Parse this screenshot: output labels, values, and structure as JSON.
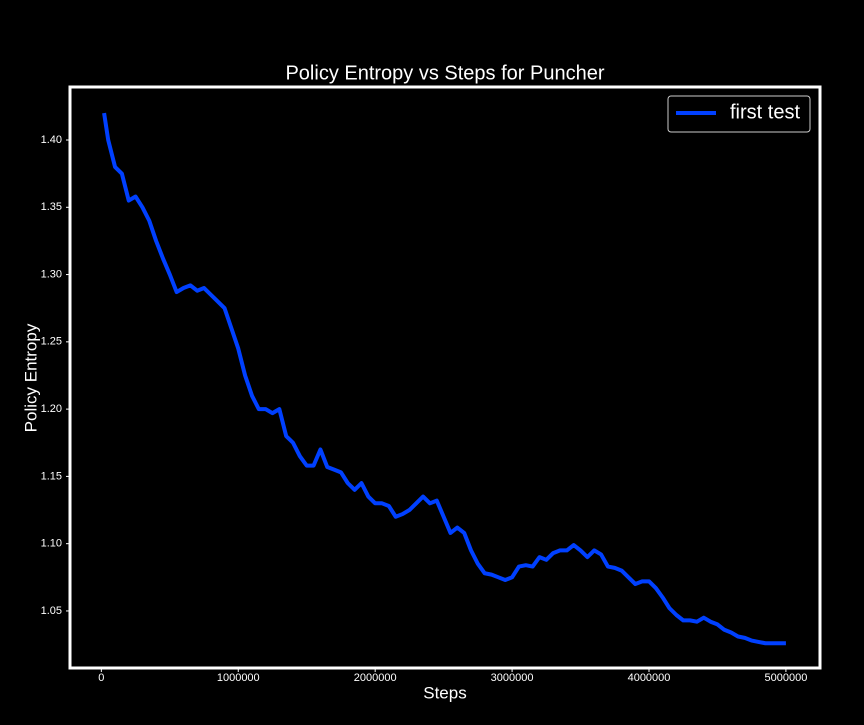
{
  "chart_data": {
    "type": "line",
    "title": "Policy Entropy vs Steps for Puncher",
    "x_label": "Steps",
    "y_label": "Policy Entropy",
    "x": [
      20000,
      50000,
      100000,
      150000,
      200000,
      250000,
      300000,
      350000,
      400000,
      450000,
      500000,
      550000,
      600000,
      650000,
      700000,
      750000,
      800000,
      850000,
      900000,
      950000,
      1000000,
      1050000,
      1100000,
      1150000,
      1200000,
      1250000,
      1300000,
      1350000,
      1400000,
      1450000,
      1500000,
      1550000,
      1600000,
      1650000,
      1700000,
      1750000,
      1800000,
      1850000,
      1900000,
      1950000,
      2000000,
      2050000,
      2100000,
      2150000,
      2200000,
      2250000,
      2300000,
      2350000,
      2400000,
      2450000,
      2500000,
      2550000,
      2600000,
      2650000,
      2700000,
      2750000,
      2800000,
      2850000,
      2900000,
      2950000,
      3000000,
      3050000,
      3100000,
      3150000,
      3200000,
      3250000,
      3300000,
      3350000,
      3400000,
      3450000,
      3500000,
      3550000,
      3600000,
      3650000,
      3700000,
      3750000,
      3800000,
      3850000,
      3900000,
      3950000,
      4000000,
      4050000,
      4100000,
      4150000,
      4200000,
      4250000,
      4300000,
      4350000,
      4400000,
      4450000,
      4500000,
      4550000,
      4600000,
      4650000,
      4700000,
      4750000,
      4800000,
      4850000,
      4900000,
      4950000,
      5000000
    ],
    "series": [
      {
        "name": "first test",
        "color": "#0040ff",
        "values": [
          1.42,
          1.4,
          1.38,
          1.375,
          1.355,
          1.358,
          1.35,
          1.34,
          1.325,
          1.312,
          1.3,
          1.287,
          1.29,
          1.292,
          1.288,
          1.29,
          1.285,
          1.28,
          1.275,
          1.26,
          1.245,
          1.225,
          1.21,
          1.2,
          1.2,
          1.197,
          1.2,
          1.18,
          1.175,
          1.165,
          1.158,
          1.158,
          1.17,
          1.157,
          1.155,
          1.153,
          1.145,
          1.14,
          1.145,
          1.135,
          1.13,
          1.13,
          1.128,
          1.12,
          1.122,
          1.125,
          1.13,
          1.135,
          1.13,
          1.132,
          1.12,
          1.108,
          1.112,
          1.108,
          1.095,
          1.085,
          1.078,
          1.077,
          1.075,
          1.073,
          1.075,
          1.083,
          1.084,
          1.083,
          1.09,
          1.088,
          1.093,
          1.095,
          1.095,
          1.099,
          1.095,
          1.09,
          1.095,
          1.092,
          1.083,
          1.082,
          1.08,
          1.075,
          1.07,
          1.072,
          1.072,
          1.067,
          1.06,
          1.052,
          1.047,
          1.043,
          1.043,
          1.042,
          1.045,
          1.042,
          1.04,
          1.036,
          1.034,
          1.031,
          1.03,
          1.028,
          1.027,
          1.026,
          1.026,
          1.026,
          1.026
        ]
      }
    ],
    "xlim": [
      -229000,
      5249000
    ],
    "xticks": [
      0,
      1000000,
      2000000,
      3000000,
      4000000,
      5000000
    ],
    "ylim": [
      1.0076,
      1.4394
    ],
    "yticks": [
      1.05,
      {
        "value": 1.1,
        "label": "1.10"
      },
      1.15,
      {
        "value": 1.2,
        "label": "1.20"
      },
      1.25,
      {
        "value": 1.3,
        "label": "1.30"
      },
      1.35,
      {
        "value": 1.4,
        "label": "1.40"
      }
    ],
    "grid": false,
    "legend": "upper right"
  }
}
